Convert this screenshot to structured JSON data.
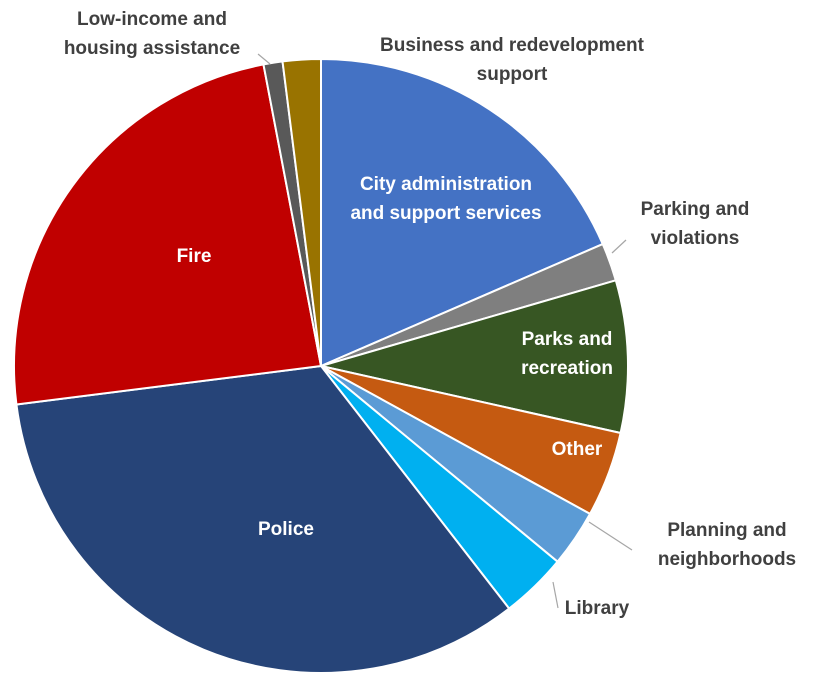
{
  "chart_data": {
    "type": "pie",
    "title": "",
    "slices": [
      {
        "label": "City administration and support services",
        "value": 18.5,
        "color": "#4472C4"
      },
      {
        "label": "Parking and violations",
        "value": 2.0,
        "color": "#7F7F7F"
      },
      {
        "label": "Parks and recreation",
        "value": 8.0,
        "color": "#375623"
      },
      {
        "label": "Other",
        "value": 4.5,
        "color": "#C55A11"
      },
      {
        "label": "Planning and neighborhoods",
        "value": 3.0,
        "color": "#5B9BD5"
      },
      {
        "label": "Library",
        "value": 3.5,
        "color": "#00B0F0"
      },
      {
        "label": "Police",
        "value": 33.5,
        "color": "#264478"
      },
      {
        "label": "Fire",
        "value": 24.0,
        "color": "#C00000"
      },
      {
        "label": "Low-income and housing assistance",
        "value": 1.0,
        "color": "#595959"
      },
      {
        "label": "Business and redevelopment support",
        "value": 2.0,
        "color": "#997300"
      }
    ],
    "label_lines": [
      [
        "City administration",
        "and support services"
      ],
      [
        "Parking and",
        "violations"
      ],
      [
        "Parks and",
        "recreation"
      ],
      [
        "Other"
      ],
      [
        "Planning and",
        "neighborhoods"
      ],
      [
        "Library"
      ],
      [
        "Police"
      ],
      [
        "Fire"
      ],
      [
        "Low-income and",
        "housing assistance"
      ],
      [
        "Business and redevelopment",
        "support"
      ]
    ],
    "legend": "none"
  }
}
